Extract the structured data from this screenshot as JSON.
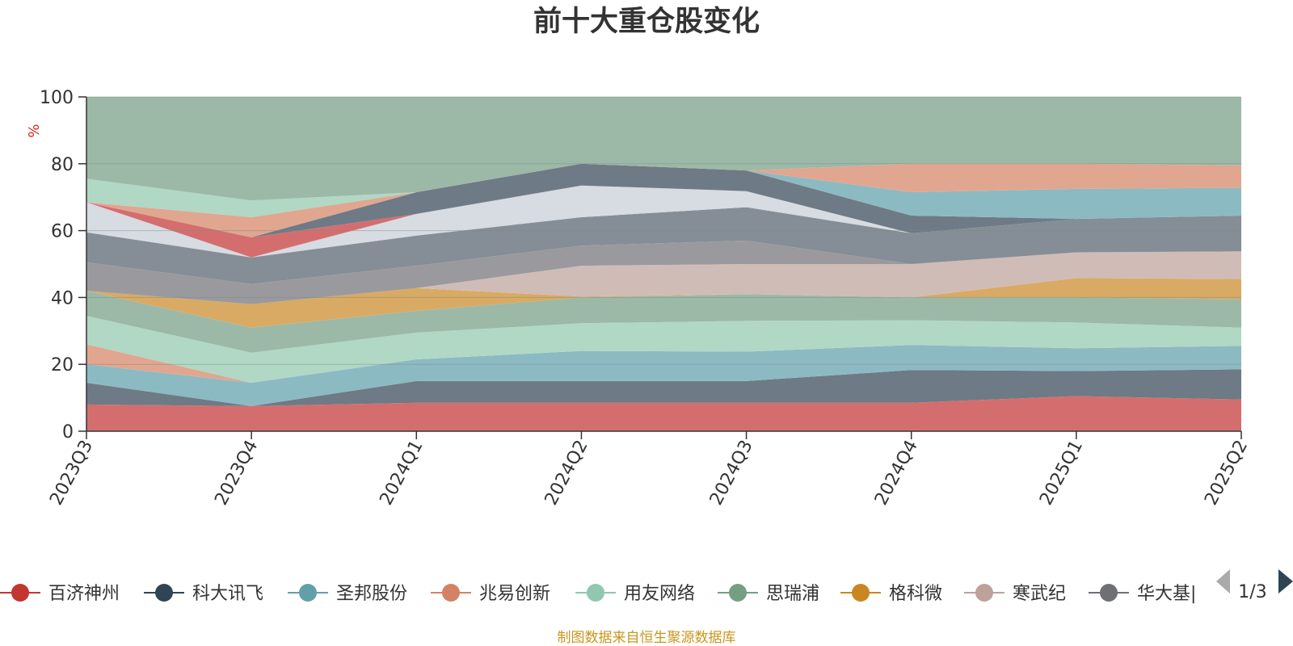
{
  "chart_data": {
    "type": "area",
    "title": "前十大重仓股变化",
    "ylabel": "%",
    "x": [
      "2023Q3",
      "2023Q4",
      "2024Q1",
      "2024Q2",
      "2024Q3",
      "2024Q4",
      "2025Q1",
      "2025Q2"
    ],
    "ylim": [
      0,
      100
    ],
    "yticks": [
      0,
      20,
      40,
      60,
      80,
      100
    ],
    "stacked": true,
    "grid": true,
    "legend_position": "bottom",
    "layers": [
      {
        "color": "#d46e6e",
        "top": [
          8,
          7.5,
          8.5,
          8.5,
          8.5,
          8.5,
          10.5,
          9.5
        ]
      },
      {
        "color": "#6e7a85",
        "top": [
          14.5,
          7.5,
          15,
          15,
          15,
          18.3,
          18,
          18.5
        ]
      },
      {
        "color": "#8cbac3",
        "top": [
          20,
          14.5,
          21.5,
          24,
          23.8,
          25.8,
          24.8,
          25.5
        ]
      },
      {
        "color": "#e1a690",
        "top": [
          26,
          14.5,
          21.5,
          24,
          23.8,
          25.8,
          24.8,
          25.5
        ]
      },
      {
        "color": "#b1d7c5",
        "top": [
          34.5,
          23.5,
          29.5,
          32.3,
          33,
          33.2,
          32.5,
          31
        ]
      },
      {
        "color": "#9cb9a8",
        "top": [
          42,
          31,
          36,
          40,
          41,
          40,
          40,
          39.5
        ]
      },
      {
        "color": "#d9aa63",
        "top": [
          42,
          38,
          42.8,
          40.3,
          41,
          40,
          45.8,
          45.5
        ]
      },
      {
        "color": "#d0bcb6",
        "top": [
          42,
          38,
          42.8,
          49.5,
          50,
          50,
          53.5,
          53.8
        ]
      },
      {
        "color": "#9a9a9e",
        "top": [
          50.5,
          44,
          49.5,
          55.5,
          57,
          50,
          53.5,
          53.8
        ]
      },
      {
        "color": "#858e96",
        "top": [
          59.5,
          52,
          58.5,
          64,
          67,
          59.2,
          63.5,
          64.5
        ]
      },
      {
        "color": "#d7dbe2",
        "top": [
          68.5,
          52,
          65,
          73.5,
          71.8,
          59.2,
          63.5,
          64.5
        ]
      },
      {
        "color": "#d46e6e",
        "top": [
          68.5,
          58,
          65,
          73.5,
          71.8,
          59.2,
          63.5,
          64.5
        ]
      },
      {
        "color": "#6e7a85",
        "top": [
          68.5,
          58,
          71.5,
          80,
          78,
          64.5,
          63.5,
          64.5
        ]
      },
      {
        "color": "#8cbac3",
        "top": [
          68.5,
          58,
          71.5,
          80,
          78,
          71.5,
          72.5,
          72.8
        ]
      },
      {
        "color": "#e1a690",
        "top": [
          68.5,
          64,
          71.5,
          80,
          78,
          80,
          80,
          79.5
        ]
      },
      {
        "color": "#b1d7c5",
        "top": [
          75.5,
          69,
          71.5,
          80,
          78,
          80,
          80,
          79.5
        ]
      },
      {
        "color": "#9cb9a8",
        "top": [
          100,
          100,
          100,
          100,
          100,
          100,
          100,
          100
        ]
      }
    ],
    "series": [
      {
        "name": "百济神州",
        "color": "#c23531"
      },
      {
        "name": "科大讯飞",
        "color": "#2f4554"
      },
      {
        "name": "圣邦股份",
        "color": "#61a0a8"
      },
      {
        "name": "兆易创新",
        "color": "#d48265"
      },
      {
        "name": "用友网络",
        "color": "#91c7ae"
      },
      {
        "name": "思瑞浦",
        "color": "#749f83"
      },
      {
        "name": "格科微",
        "color": "#ca8622"
      },
      {
        "name": "寒武纪",
        "color": "#bda29a"
      },
      {
        "name": "华大基因",
        "color": "#6e7074"
      }
    ]
  },
  "legend": {
    "visible_last_label": "华大基|"
  },
  "pager": {
    "text": "1/3"
  },
  "source": "制图数据来自恒生聚源数据库"
}
